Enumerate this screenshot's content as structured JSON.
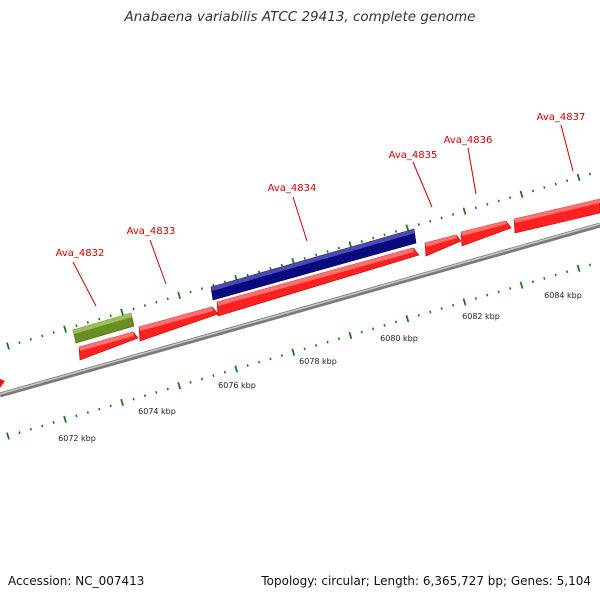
{
  "title": "Anabaena variabilis ATCC 29413, complete genome",
  "footer": {
    "accession": "Accession: NC_007413",
    "summary": "Topology: circular; Length: 6,365,727 bp; Genes: 5,104"
  },
  "colors": {
    "cds": "#ff1a1a",
    "label": "#cc0000",
    "blue_feature": "#0a0a80",
    "olive_feature": "#6b8e23",
    "tick": "#1a7a1a",
    "backbone": "#888888"
  },
  "scale_labels": [
    "6072 kbp",
    "6074 kbp",
    "6076 kbp",
    "6078 kbp",
    "6080 kbp",
    "6082 kbp",
    "6084 kbp"
  ],
  "gene_labels": [
    "Ava_4832",
    "Ava_4833",
    "Ava_4834",
    "Ava_4835",
    "Ava_4836",
    "Ava_4837"
  ]
}
